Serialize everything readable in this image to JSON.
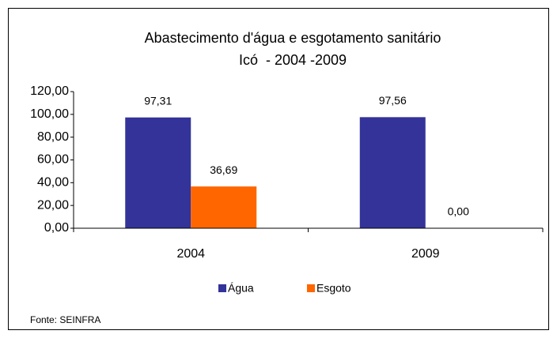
{
  "chart_data": {
    "type": "bar",
    "title": "Abastecimento d'água e esgotamento sanitário",
    "subtitle": "Icó  - 2004 -2009",
    "categories": [
      "2004",
      "2009"
    ],
    "series": [
      {
        "name": "Água",
        "color": "#333399",
        "values": [
          97.31,
          97.56
        ],
        "value_labels": [
          "97,31",
          "97,56"
        ]
      },
      {
        "name": "Esgoto",
        "color": "#FF6600",
        "values": [
          36.69,
          0
        ],
        "value_labels": [
          "36,69",
          "0,00"
        ]
      }
    ],
    "ylim": [
      0,
      120
    ],
    "yticks": [
      {
        "value": 0,
        "label": "0,00"
      },
      {
        "value": 20,
        "label": "20,00"
      },
      {
        "value": 40,
        "label": "40,00"
      },
      {
        "value": 60,
        "label": "60,00"
      },
      {
        "value": 80,
        "label": "80,00"
      },
      {
        "value": 100,
        "label": "100,00"
      },
      {
        "value": 120,
        "label": "120,00"
      }
    ],
    "grid": false,
    "legend": "bottom",
    "source": "Fonte: SEINFRA"
  }
}
